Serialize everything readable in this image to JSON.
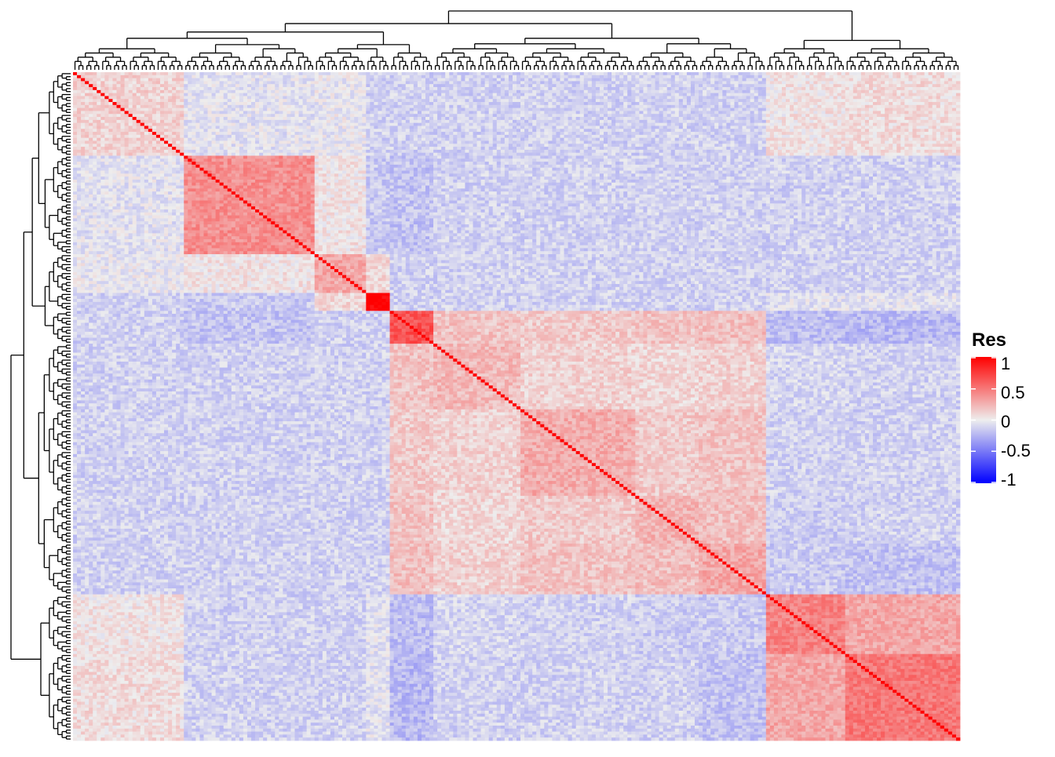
{
  "chart_data": {
    "type": "heatmap",
    "title": "",
    "description_of_values": "correlation matrix, hierarchically clustered (rows and columns in same order)",
    "n": 224,
    "value_range": [
      -1,
      1
    ],
    "diagonal": 1,
    "row_dendrogram": "left",
    "column_dendrogram": "top",
    "colors": {
      "low": "#0000ff",
      "mid": "#eeeeee",
      "high": "#ff0000"
    },
    "legend": {
      "title": "Res",
      "position": "right",
      "ticks": [
        "1",
        "0.5",
        "0",
        "-0.5",
        "-1"
      ]
    },
    "blocks_note": "approximate cluster blocks, given as matrix index ranges [start, end) with mean within-block value",
    "clusters": [
      {
        "range": [
          0,
          28
        ],
        "within": 0.12
      },
      {
        "range": [
          28,
          61
        ],
        "within": 0.4
      },
      {
        "range": [
          61,
          74
        ],
        "within": 0.3
      },
      {
        "range": [
          74,
          80
        ],
        "within": 1.0
      },
      {
        "range": [
          80,
          91
        ],
        "within": 0.65
      },
      {
        "range": [
          91,
          113
        ],
        "within": 0.22
      },
      {
        "range": [
          113,
          142
        ],
        "within": 0.28
      },
      {
        "range": [
          142,
          158
        ],
        "within": 0.25
      },
      {
        "range": [
          158,
          175
        ],
        "within": 0.3
      },
      {
        "range": [
          175,
          195
        ],
        "within": 0.45
      },
      {
        "range": [
          195,
          224
        ],
        "within": 0.5
      }
    ]
  }
}
